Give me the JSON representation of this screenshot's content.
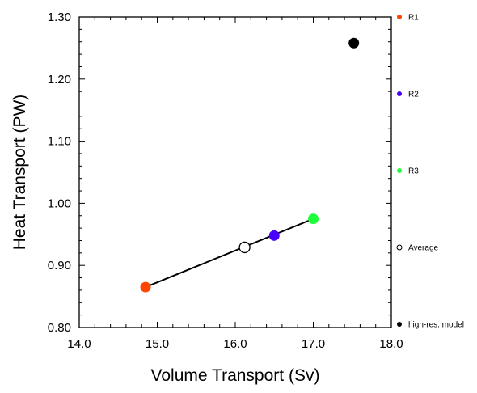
{
  "chart_data": {
    "type": "scatter",
    "xlabel": "Volume Transport (Sv)",
    "ylabel": "Heat Transport (PW)",
    "xlim": [
      14.0,
      18.0
    ],
    "ylim": [
      0.8,
      1.3
    ],
    "x_ticks": [
      14.0,
      15.0,
      16.0,
      17.0,
      18.0
    ],
    "x_tick_labels": [
      "14.0",
      "15.0",
      "16.0",
      "17.0",
      "18.0"
    ],
    "y_ticks": [
      0.8,
      0.9,
      1.0,
      1.1,
      1.2,
      1.3
    ],
    "y_tick_labels": [
      "0.80",
      "0.90",
      "1.00",
      "1.10",
      "1.20",
      "1.30"
    ],
    "grid": false,
    "legend_position": "right (outside plot)",
    "points": [
      {
        "name": "R1",
        "x": 14.85,
        "y": 0.865,
        "color": "#ff4500",
        "filled": true
      },
      {
        "name": "R2",
        "x": 16.5,
        "y": 0.948,
        "color": "#4a00ff",
        "filled": true
      },
      {
        "name": "R3",
        "x": 17.0,
        "y": 0.975,
        "color": "#1dff3a",
        "filled": true
      },
      {
        "name": "Average",
        "x": 16.12,
        "y": 0.929,
        "color": "#000000",
        "filled": false
      },
      {
        "name": "high-res. model",
        "x": 17.52,
        "y": 1.258,
        "color": "#000000",
        "filled": true
      }
    ],
    "line": {
      "from": "R1",
      "to": "R3",
      "color": "#000000"
    }
  }
}
